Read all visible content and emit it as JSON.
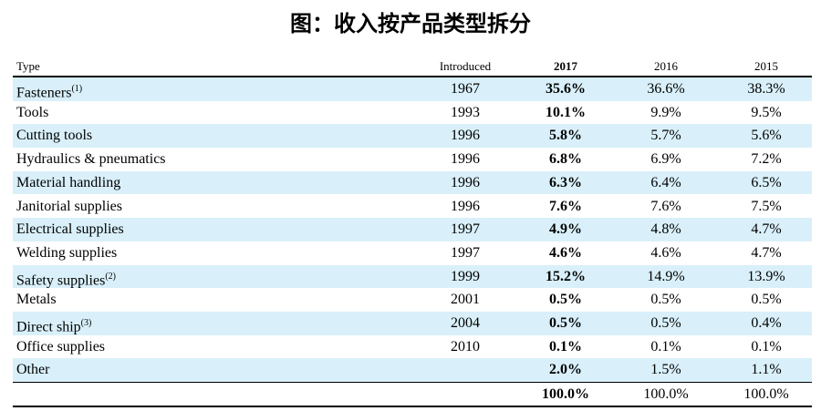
{
  "header": {
    "title": "图：收入按产品类型拆分"
  },
  "table": {
    "columns": [
      "Type",
      "Introduced",
      "2017",
      "2016",
      "2015"
    ],
    "rows": [
      {
        "type": "Fasteners",
        "note": "(1)",
        "introduced": "1967",
        "y2017": "35.6%",
        "y2016": "36.6%",
        "y2015": "38.3%"
      },
      {
        "type": "Tools",
        "introduced": "1993",
        "y2017": "10.1%",
        "y2016": "9.9%",
        "y2015": "9.5%"
      },
      {
        "type": "Cutting tools",
        "introduced": "1996",
        "y2017": "5.8%",
        "y2016": "5.7%",
        "y2015": "5.6%"
      },
      {
        "type": "Hydraulics & pneumatics",
        "introduced": "1996",
        "y2017": "6.8%",
        "y2016": "6.9%",
        "y2015": "7.2%"
      },
      {
        "type": "Material handling",
        "introduced": "1996",
        "y2017": "6.3%",
        "y2016": "6.4%",
        "y2015": "6.5%"
      },
      {
        "type": "Janitorial supplies",
        "introduced": "1996",
        "y2017": "7.6%",
        "y2016": "7.6%",
        "y2015": "7.5%"
      },
      {
        "type": "Electrical supplies",
        "introduced": "1997",
        "y2017": "4.9%",
        "y2016": "4.8%",
        "y2015": "4.7%"
      },
      {
        "type": "Welding supplies",
        "introduced": "1997",
        "y2017": "4.6%",
        "y2016": "4.6%",
        "y2015": "4.7%"
      },
      {
        "type": "Safety supplies",
        "note": "(2)",
        "introduced": "1999",
        "y2017": "15.2%",
        "y2016": "14.9%",
        "y2015": "13.9%"
      },
      {
        "type": "Metals",
        "introduced": "2001",
        "y2017": "0.5%",
        "y2016": "0.5%",
        "y2015": "0.5%"
      },
      {
        "type": "Direct ship",
        "note": "(3)",
        "introduced": "2004",
        "y2017": "0.5%",
        "y2016": "0.5%",
        "y2015": "0.4%"
      },
      {
        "type": "Office supplies",
        "introduced": "2010",
        "y2017": "0.1%",
        "y2016": "0.1%",
        "y2015": "0.1%"
      },
      {
        "type": "Other",
        "y2017": "2.0%",
        "y2016": "1.5%",
        "y2015": "1.1%"
      }
    ],
    "total": {
      "y2017": "100.0%",
      "y2016": "100.0%",
      "y2015": "100.0%"
    }
  }
}
